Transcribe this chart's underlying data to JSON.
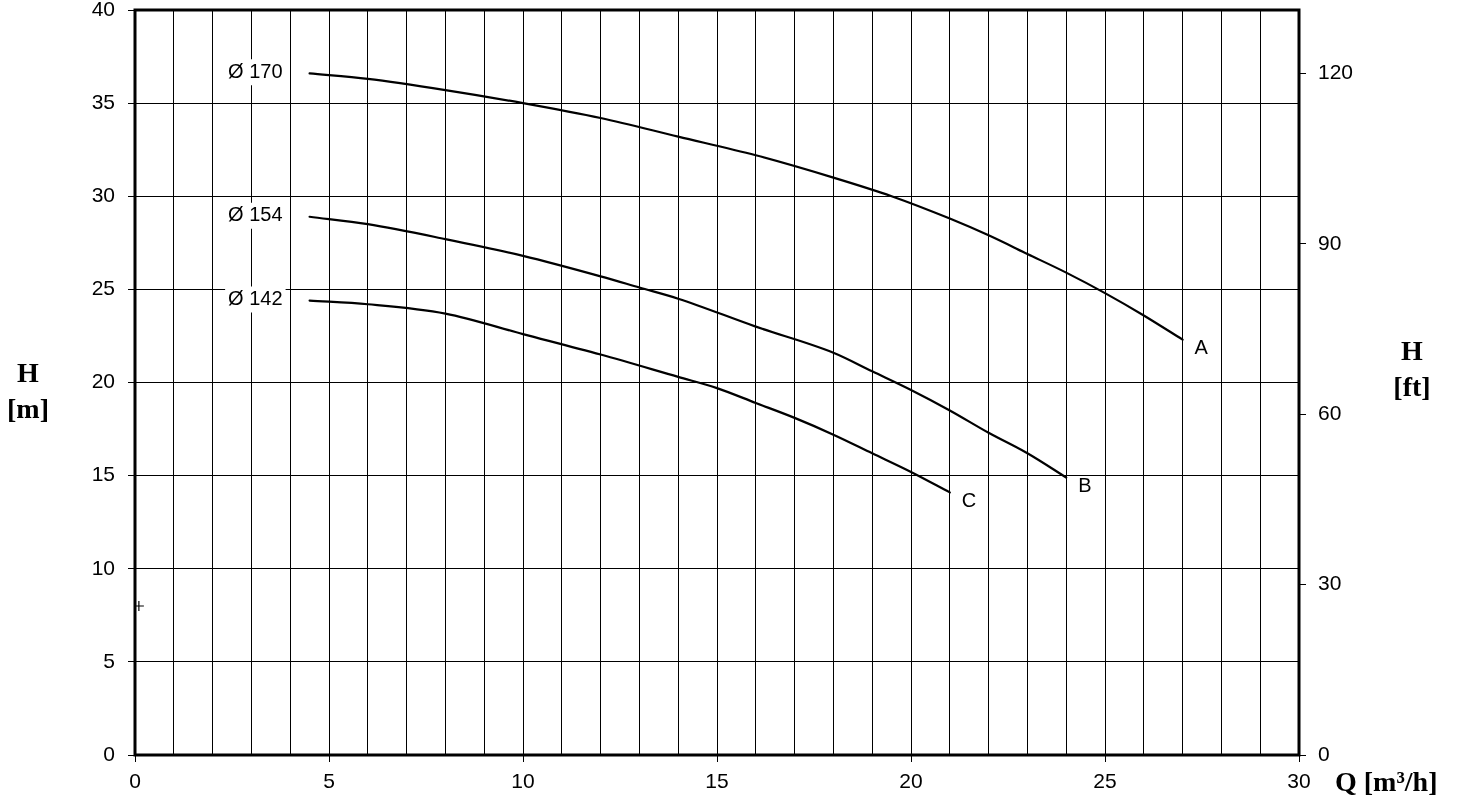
{
  "chart_data": {
    "type": "line",
    "xlabel": "Q [m³/h]",
    "ylabel": "H [m]",
    "y2label": "H [ft]",
    "xlim": [
      0,
      30
    ],
    "xticks": [
      0,
      {
        "value": 1,
        "label": null
      },
      {
        "value": 2,
        "label": null
      },
      {
        "value": 3,
        "label": null
      },
      {
        "value": 4,
        "label": null
      },
      5,
      {
        "value": 6,
        "label": null
      },
      {
        "value": 7,
        "label": null
      },
      {
        "value": 8,
        "label": null
      },
      {
        "value": 9,
        "label": null
      },
      10,
      {
        "value": 11,
        "label": null
      },
      {
        "value": 12,
        "label": null
      },
      {
        "value": 13,
        "label": null
      },
      {
        "value": 14,
        "label": null
      },
      15,
      {
        "value": 16,
        "label": null
      },
      {
        "value": 17,
        "label": null
      },
      {
        "value": 18,
        "label": null
      },
      {
        "value": 19,
        "label": null
      },
      20,
      {
        "value": 21,
        "label": null
      },
      {
        "value": 22,
        "label": null
      },
      {
        "value": 23,
        "label": null
      },
      {
        "value": 24,
        "label": null
      },
      25,
      {
        "value": 26,
        "label": null
      },
      {
        "value": 27,
        "label": null
      },
      {
        "value": 28,
        "label": null
      },
      {
        "value": 29,
        "label": null
      },
      30
    ],
    "ylim": [
      0,
      40
    ],
    "yticks": [
      0,
      5,
      10,
      15,
      20,
      25,
      30,
      35,
      40
    ],
    "y2lim": [
      0,
      131.2
    ],
    "y2ticks": [
      0,
      30,
      60,
      90,
      120
    ],
    "grid": true,
    "marker": "none",
    "line_style": "solid",
    "series": [
      {
        "name": "Ø 170",
        "color": "#000000",
        "x": [
          4.5,
          6,
          8,
          10,
          12,
          14,
          16,
          18,
          19.5,
          21,
          22,
          23,
          24,
          25,
          26,
          27
        ],
        "values": [
          36.6,
          36.3,
          35.7,
          35.0,
          34.2,
          33.2,
          32.2,
          31.0,
          30.0,
          28.8,
          27.9,
          26.9,
          25.9,
          24.8,
          23.6,
          22.3
        ]
      },
      {
        "name": "Ø 154",
        "color": "#000000",
        "x": [
          4.5,
          6,
          8,
          10,
          12,
          13,
          14,
          16,
          18,
          19,
          20,
          21,
          22,
          23,
          24
        ],
        "values": [
          28.9,
          28.5,
          27.7,
          26.8,
          25.7,
          25.1,
          24.5,
          23.0,
          21.6,
          20.6,
          19.6,
          18.5,
          17.3,
          16.2,
          14.9
        ]
      },
      {
        "name": "Ø 142",
        "color": "#000000",
        "x": [
          4.5,
          6,
          8,
          10,
          12,
          14,
          15,
          16,
          17,
          18,
          19,
          20,
          21
        ],
        "values": [
          24.4,
          24.2,
          23.7,
          22.6,
          21.5,
          20.3,
          19.7,
          18.9,
          18.1,
          17.2,
          16.2,
          15.2,
          14.1
        ]
      },
      {
        "type": "scatter",
        "marker": "cross",
        "color": "#000000",
        "x": [
          0.1
        ],
        "values": [
          8
        ]
      }
    ],
    "annotations": [
      {
        "text": "A",
        "x": 27,
        "y": 22.3
      },
      {
        "text": "B",
        "x": 24,
        "y": 14.9
      },
      {
        "text": "C",
        "x": 21,
        "y": 14.1
      }
    ]
  }
}
